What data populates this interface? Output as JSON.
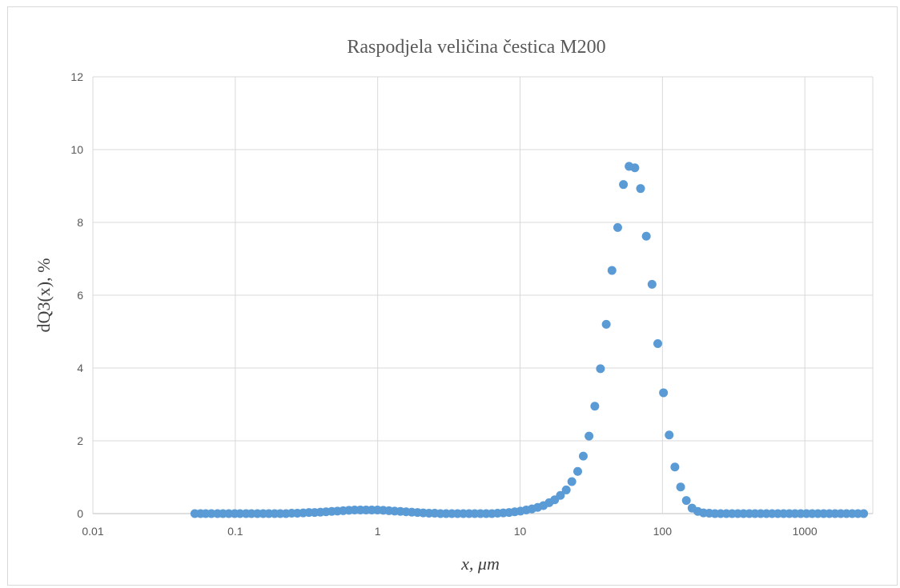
{
  "chart_data": {
    "type": "scatter",
    "title": "Raspodjela veličina čestica M200",
    "xlabel": "x, μm",
    "ylabel": "dQ3(x), %",
    "xscale": "log",
    "xlim": [
      0.01,
      3000
    ],
    "ylim": [
      0,
      12
    ],
    "x_ticks": [
      "0.01",
      "0.1",
      "1",
      "10",
      "100",
      "1000"
    ],
    "y_ticks": [
      "0",
      "2",
      "4",
      "6",
      "8",
      "10",
      "12"
    ],
    "grid": true,
    "legend": "none",
    "marker_color": "#5b9bd5",
    "series": [
      {
        "points": [
          [
            0.052,
            0.0
          ],
          [
            0.057,
            0.0
          ],
          [
            0.062,
            0.0
          ],
          [
            0.068,
            0.0
          ],
          [
            0.075,
            0.0
          ],
          [
            0.082,
            0.0
          ],
          [
            0.09,
            0.0
          ],
          [
            0.099,
            0.0
          ],
          [
            0.108,
            0.0
          ],
          [
            0.119,
            0.0
          ],
          [
            0.13,
            0.0
          ],
          [
            0.143,
            0.0
          ],
          [
            0.157,
            0.0
          ],
          [
            0.172,
            0.0
          ],
          [
            0.189,
            0.0
          ],
          [
            0.207,
            0.0
          ],
          [
            0.227,
            0.0
          ],
          [
            0.249,
            0.01
          ],
          [
            0.273,
            0.01
          ],
          [
            0.3,
            0.02
          ],
          [
            0.329,
            0.03
          ],
          [
            0.361,
            0.03
          ],
          [
            0.396,
            0.04
          ],
          [
            0.434,
            0.05
          ],
          [
            0.476,
            0.06
          ],
          [
            0.522,
            0.07
          ],
          [
            0.573,
            0.08
          ],
          [
            0.628,
            0.09
          ],
          [
            0.689,
            0.1
          ],
          [
            0.756,
            0.1
          ],
          [
            0.829,
            0.1
          ],
          [
            0.909,
            0.1
          ],
          [
            0.997,
            0.1
          ],
          [
            1.094,
            0.09
          ],
          [
            1.2,
            0.08
          ],
          [
            1.316,
            0.07
          ],
          [
            1.444,
            0.06
          ],
          [
            1.584,
            0.05
          ],
          [
            1.737,
            0.04
          ],
          [
            1.906,
            0.03
          ],
          [
            2.09,
            0.02
          ],
          [
            2.293,
            0.01
          ],
          [
            2.515,
            0.01
          ],
          [
            2.759,
            0.0
          ],
          [
            3.026,
            0.0
          ],
          [
            3.32,
            0.0
          ],
          [
            3.641,
            0.0
          ],
          [
            3.994,
            0.0
          ],
          [
            4.381,
            0.0
          ],
          [
            4.806,
            0.0
          ],
          [
            5.271,
            0.0
          ],
          [
            5.782,
            0.0
          ],
          [
            6.342,
            0.0
          ],
          [
            6.957,
            0.01
          ],
          [
            7.631,
            0.02
          ],
          [
            8.37,
            0.03
          ],
          [
            9.181,
            0.05
          ],
          [
            10.07,
            0.07
          ],
          [
            11.05,
            0.1
          ],
          [
            12.12,
            0.13
          ],
          [
            13.29,
            0.17
          ],
          [
            14.58,
            0.22
          ],
          [
            16.0,
            0.3
          ],
          [
            17.5,
            0.38
          ],
          [
            19.2,
            0.5
          ],
          [
            21.1,
            0.65
          ],
          [
            23.1,
            0.88
          ],
          [
            25.4,
            1.16
          ],
          [
            27.8,
            1.58
          ],
          [
            30.5,
            2.13
          ],
          [
            33.5,
            2.95
          ],
          [
            36.7,
            3.98
          ],
          [
            40.3,
            5.2
          ],
          [
            44.2,
            6.68
          ],
          [
            48.5,
            7.86
          ],
          [
            53.2,
            9.04
          ],
          [
            58.3,
            9.54
          ],
          [
            64.0,
            9.5
          ],
          [
            70.2,
            8.93
          ],
          [
            77.0,
            7.62
          ],
          [
            84.5,
            6.3
          ],
          [
            92.7,
            4.67
          ],
          [
            101.7,
            3.32
          ],
          [
            111.5,
            2.16
          ],
          [
            122.3,
            1.28
          ],
          [
            134.2,
            0.73
          ],
          [
            147.2,
            0.36
          ],
          [
            161.4,
            0.15
          ],
          [
            177.1,
            0.06
          ],
          [
            194.2,
            0.02
          ],
          [
            213.1,
            0.01
          ],
          [
            233.7,
            0.0
          ],
          [
            256.3,
            0.0
          ],
          [
            281.2,
            0.0
          ],
          [
            308.4,
            0.0
          ],
          [
            338.3,
            0.0
          ],
          [
            371.1,
            0.0
          ],
          [
            407.1,
            0.0
          ],
          [
            446.5,
            0.0
          ],
          [
            489.8,
            0.0
          ],
          [
            537.3,
            0.0
          ],
          [
            589.3,
            0.0
          ],
          [
            646.4,
            0.0
          ],
          [
            709.1,
            0.0
          ],
          [
            777.8,
            0.0
          ],
          [
            853.2,
            0.0
          ],
          [
            935.9,
            0.0
          ],
          [
            1026.6,
            0.0
          ],
          [
            1126.1,
            0.0
          ],
          [
            1235.2,
            0.0
          ],
          [
            1354.9,
            0.0
          ],
          [
            1486.2,
            0.0
          ],
          [
            1630.3,
            0.0
          ],
          [
            1788.3,
            0.0
          ],
          [
            1961.6,
            0.0
          ],
          [
            2151.7,
            0.0
          ],
          [
            2360.3,
            0.0
          ],
          [
            2589.0,
            0.0
          ]
        ]
      }
    ]
  }
}
